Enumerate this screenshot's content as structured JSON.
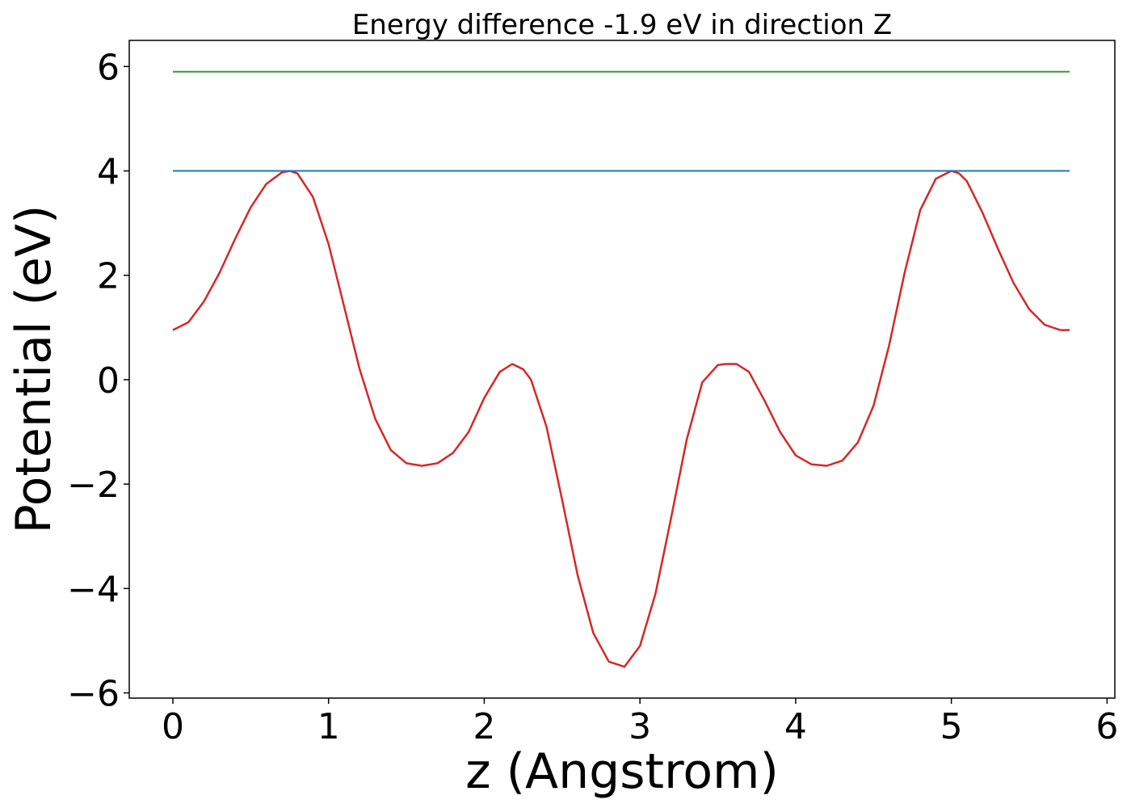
{
  "chart_data": {
    "type": "line",
    "title": "Energy difference -1.9 eV in direction Z",
    "xlabel": "z (Angstrom)",
    "ylabel": "Potential (eV)",
    "xlim": [
      -0.28,
      6.05
    ],
    "ylim": [
      -6.1,
      6.5
    ],
    "xticks": [
      0,
      1,
      2,
      3,
      4,
      5,
      6
    ],
    "xtick_labels": [
      "0",
      "1",
      "2",
      "3",
      "4",
      "5",
      "6"
    ],
    "yticks": [
      -6,
      -4,
      -2,
      0,
      2,
      4,
      6
    ],
    "ytick_labels": [
      "−6",
      "−4",
      "−2",
      "0",
      "2",
      "4",
      "6"
    ],
    "grid": false,
    "series": [
      {
        "color": "#d62728",
        "x": [
          0,
          0.1,
          0.2,
          0.3,
          0.4,
          0.5,
          0.6,
          0.7,
          0.75,
          0.8,
          0.9,
          1.0,
          1.1,
          1.2,
          1.3,
          1.4,
          1.5,
          1.6,
          1.7,
          1.8,
          1.9,
          2.0,
          2.1,
          2.18,
          2.25,
          2.3,
          2.4,
          2.5,
          2.6,
          2.7,
          2.8,
          2.9,
          3.0,
          3.1,
          3.2,
          3.3,
          3.4,
          3.5,
          3.55,
          3.62,
          3.7,
          3.8,
          3.9,
          4.0,
          4.1,
          4.2,
          4.3,
          4.4,
          4.5,
          4.6,
          4.7,
          4.8,
          4.9,
          5.0,
          5.05,
          5.1,
          5.2,
          5.3,
          5.4,
          5.5,
          5.6,
          5.7,
          5.76
        ],
        "values": [
          0.95,
          1.1,
          1.5,
          2.05,
          2.7,
          3.3,
          3.75,
          3.97,
          4.0,
          3.95,
          3.5,
          2.6,
          1.4,
          0.2,
          -0.75,
          -1.35,
          -1.6,
          -1.65,
          -1.6,
          -1.4,
          -1.0,
          -0.35,
          0.15,
          0.3,
          0.2,
          0.0,
          -0.9,
          -2.3,
          -3.75,
          -4.85,
          -5.4,
          -5.5,
          -5.1,
          -4.1,
          -2.65,
          -1.15,
          -0.05,
          0.28,
          0.3,
          0.3,
          0.15,
          -0.4,
          -1.0,
          -1.45,
          -1.62,
          -1.65,
          -1.55,
          -1.2,
          -0.5,
          0.65,
          2.05,
          3.25,
          3.85,
          4.0,
          3.95,
          3.8,
          3.2,
          2.5,
          1.85,
          1.35,
          1.05,
          0.95,
          0.95
        ]
      },
      {
        "color": "#1f77b4",
        "x": [
          0,
          5.76
        ],
        "values": [
          4.0,
          4.0
        ]
      },
      {
        "color": "#2ca02c",
        "x": [
          0,
          5.76
        ],
        "values": [
          5.9,
          5.9
        ]
      }
    ]
  }
}
